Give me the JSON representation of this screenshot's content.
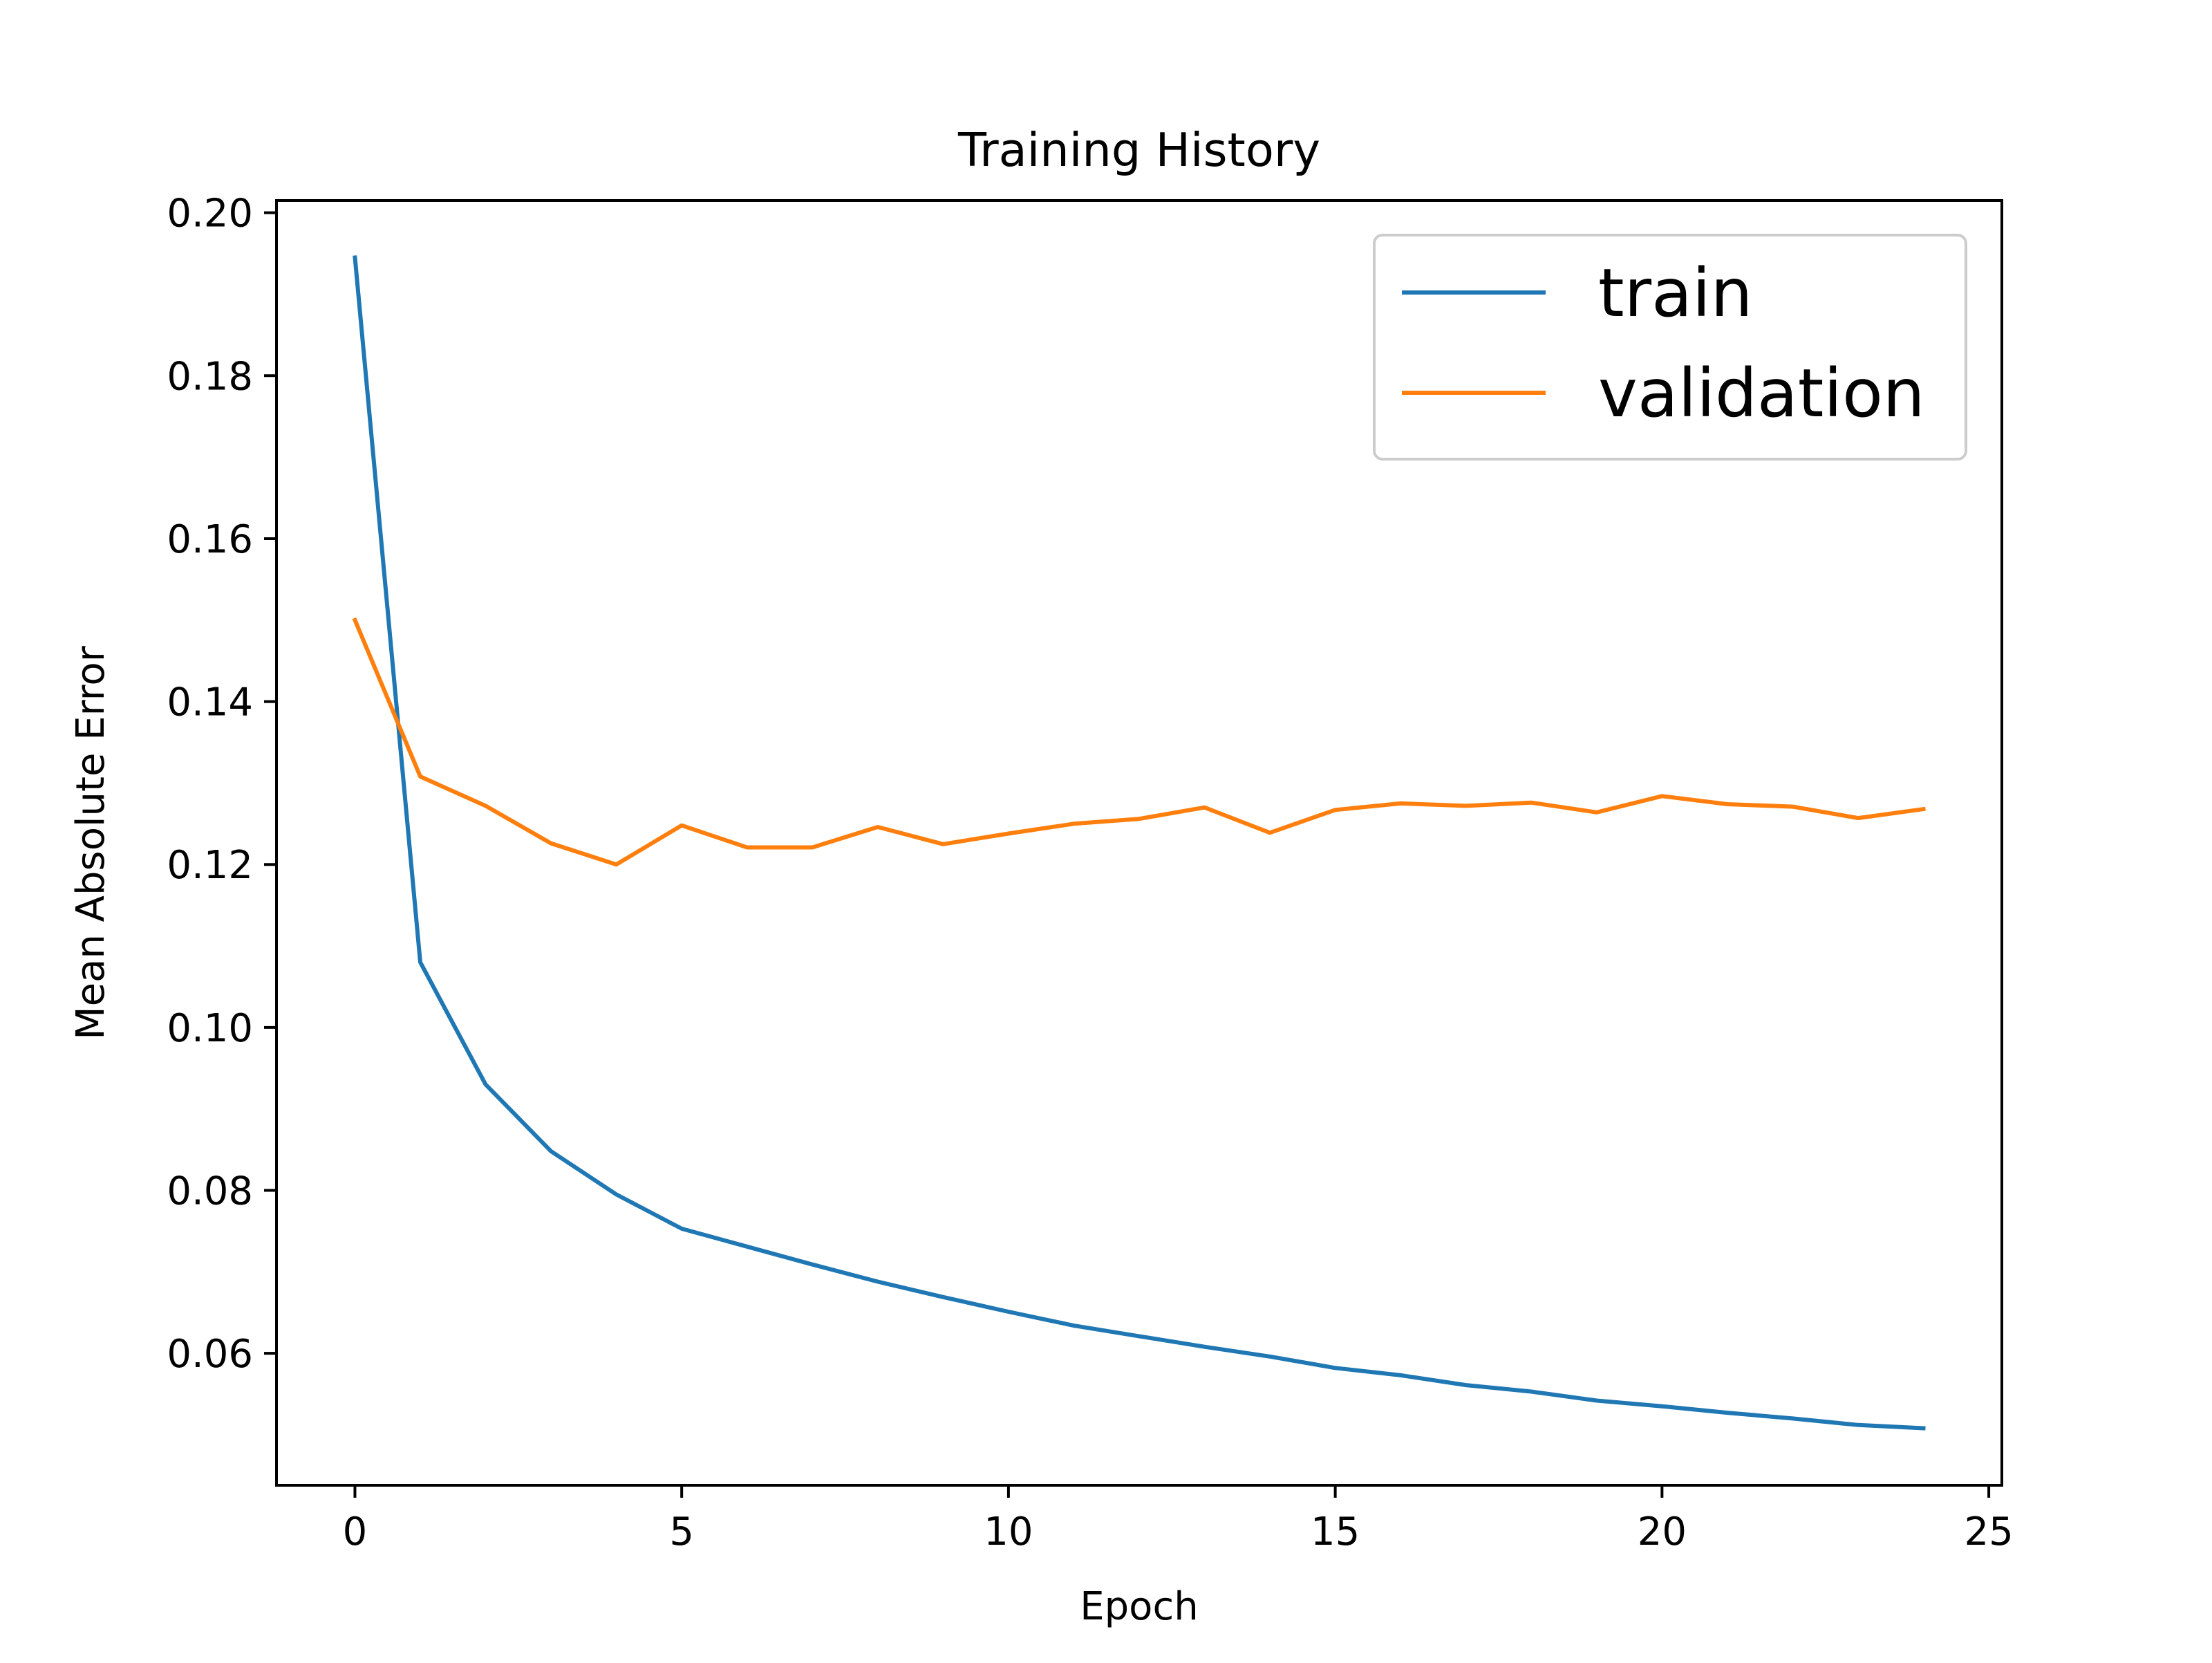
{
  "chart_data": {
    "type": "line",
    "title": "Training History",
    "xlabel": "Epoch",
    "ylabel": "Mean Absolute Error",
    "xlim": [
      -1.2,
      25.2
    ],
    "ylim": [
      0.0438,
      0.2015
    ],
    "xticks": [
      0,
      5,
      10,
      15,
      20,
      25
    ],
    "yticks": [
      0.06,
      0.08,
      0.1,
      0.12,
      0.14,
      0.16,
      0.18,
      0.2
    ],
    "xtick_labels": [
      "0",
      "5",
      "10",
      "15",
      "20",
      "25"
    ],
    "ytick_labels": [
      "0.06",
      "0.08",
      "0.10",
      "0.12",
      "0.14",
      "0.16",
      "0.18",
      "0.20"
    ],
    "grid": false,
    "legend_position": "upper right",
    "x": [
      0,
      1,
      2,
      3,
      4,
      5,
      6,
      7,
      8,
      9,
      10,
      11,
      12,
      13,
      14,
      15,
      16,
      17,
      18,
      19,
      20,
      21,
      22,
      23,
      24
    ],
    "series": [
      {
        "name": "train",
        "color": "#1f77b4",
        "values": [
          0.1945,
          0.108,
          0.093,
          0.0848,
          0.0795,
          0.0753,
          0.0731,
          0.0709,
          0.0688,
          0.0669,
          0.0651,
          0.0634,
          0.0621,
          0.0608,
          0.0596,
          0.0582,
          0.0573,
          0.0561,
          0.0553,
          0.0542,
          0.0535,
          0.0527,
          0.052,
          0.0512,
          0.0508
        ]
      },
      {
        "name": "validation",
        "color": "#ff7f0e",
        "values": [
          0.15,
          0.1308,
          0.1272,
          0.1226,
          0.12,
          0.1248,
          0.1221,
          0.1221,
          0.1246,
          0.1225,
          0.1238,
          0.125,
          0.1256,
          0.127,
          0.1239,
          0.1267,
          0.1275,
          0.1272,
          0.1276,
          0.1264,
          0.1284,
          0.1274,
          0.1271,
          0.1257,
          0.1268
        ]
      }
    ]
  }
}
